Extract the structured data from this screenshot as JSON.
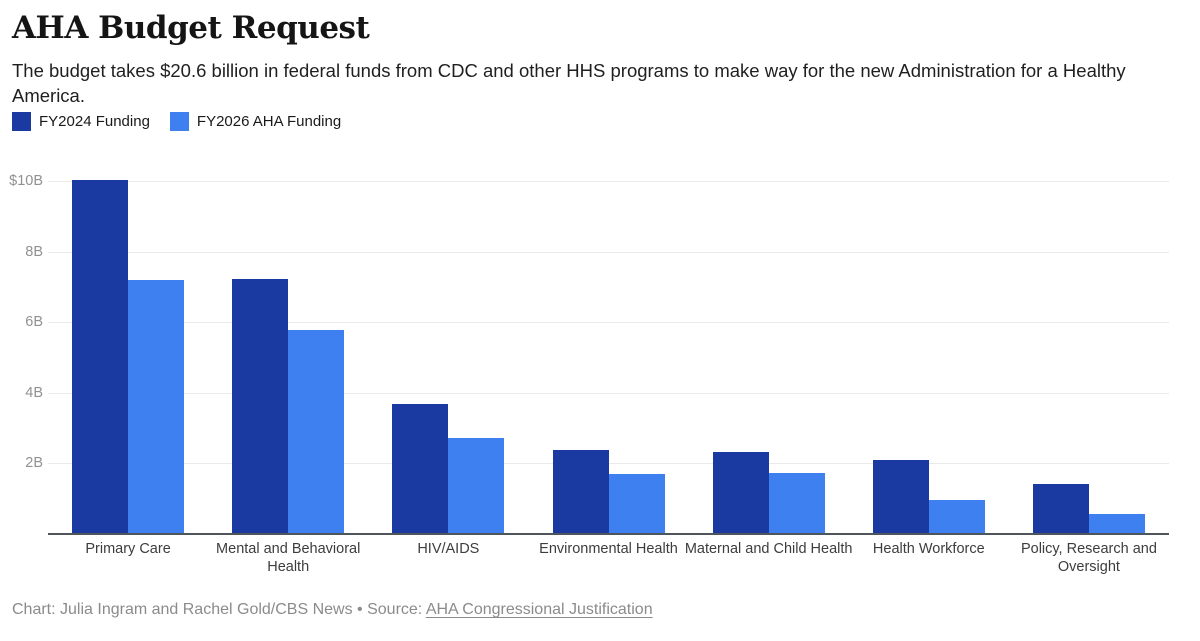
{
  "header": {
    "title": "AHA Budget Request",
    "subtitle_line1": "The budget takes $20.6 billion in federal funds from CDC and other HHS programs to make way for the new Administration for a Healthy",
    "subtitle_line2": "America."
  },
  "chart_data": {
    "type": "bar",
    "title": "AHA Budget Request",
    "unit": "billions of US dollars",
    "categories": [
      "Primary Care",
      "Mental and Behavioral Health",
      "HIV/AIDS",
      "Environmental Health",
      "Maternal and Child Health",
      "Health Workforce",
      "Policy, Research and Oversight"
    ],
    "series": [
      {
        "name": "FY2024 Funding",
        "color": "#1A3AA2",
        "values": [
          10.0,
          7.2,
          3.66,
          2.34,
          2.3,
          2.07,
          1.38
        ]
      },
      {
        "name": "FY2026 AHA Funding",
        "color": "#3E80F0",
        "values": [
          7.17,
          5.77,
          2.7,
          1.67,
          1.69,
          0.94,
          0.55
        ]
      }
    ],
    "ylim": [
      0,
      10
    ],
    "yticks": [
      {
        "value": 10,
        "label": "$10B"
      },
      {
        "value": 8,
        "label": "8B"
      },
      {
        "value": 6,
        "label": "6B"
      },
      {
        "value": 4,
        "label": "4B"
      },
      {
        "value": 2,
        "label": "2B"
      }
    ],
    "grid": "horizontal",
    "legend_position": "top-left",
    "xlabel": "",
    "ylabel": ""
  },
  "footer": {
    "credit": "Chart: Julia Ingram and Rachel Gold/CBS News",
    "separator": "•",
    "source_label": "Source:",
    "source_link": "AHA Congressional Justification"
  }
}
